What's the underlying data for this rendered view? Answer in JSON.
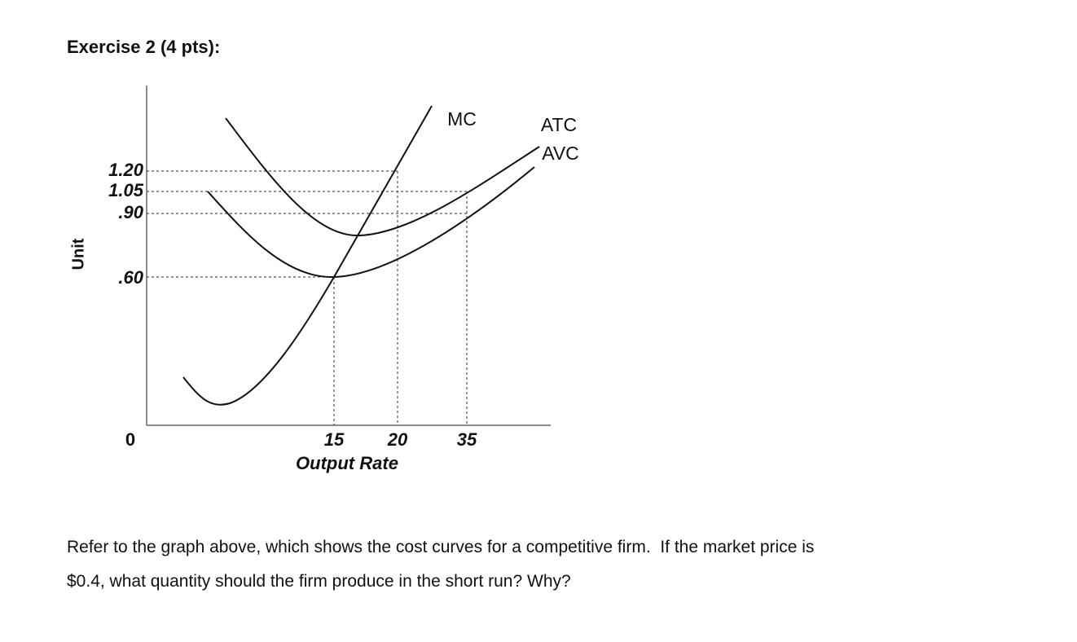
{
  "header": {
    "title": "Exercise 2 (4 pts):"
  },
  "figure": {
    "y_axis": {
      "label": "Unit",
      "ticks": [
        "1.20",
        "1.05",
        ".90",
        ".60",
        "0"
      ]
    },
    "x_axis": {
      "label": "Output Rate",
      "ticks": [
        "15",
        "20",
        "35"
      ]
    },
    "curves": [
      {
        "label": "MC"
      },
      {
        "label": "ATC"
      },
      {
        "label": "AVC"
      }
    ]
  },
  "question": {
    "lines": [
      "Refer to the graph above, which shows the cost curves for a competitive firm.  If the market price is",
      "$0.4, what quantity should the firm produce in the short run? Why?"
    ]
  }
}
